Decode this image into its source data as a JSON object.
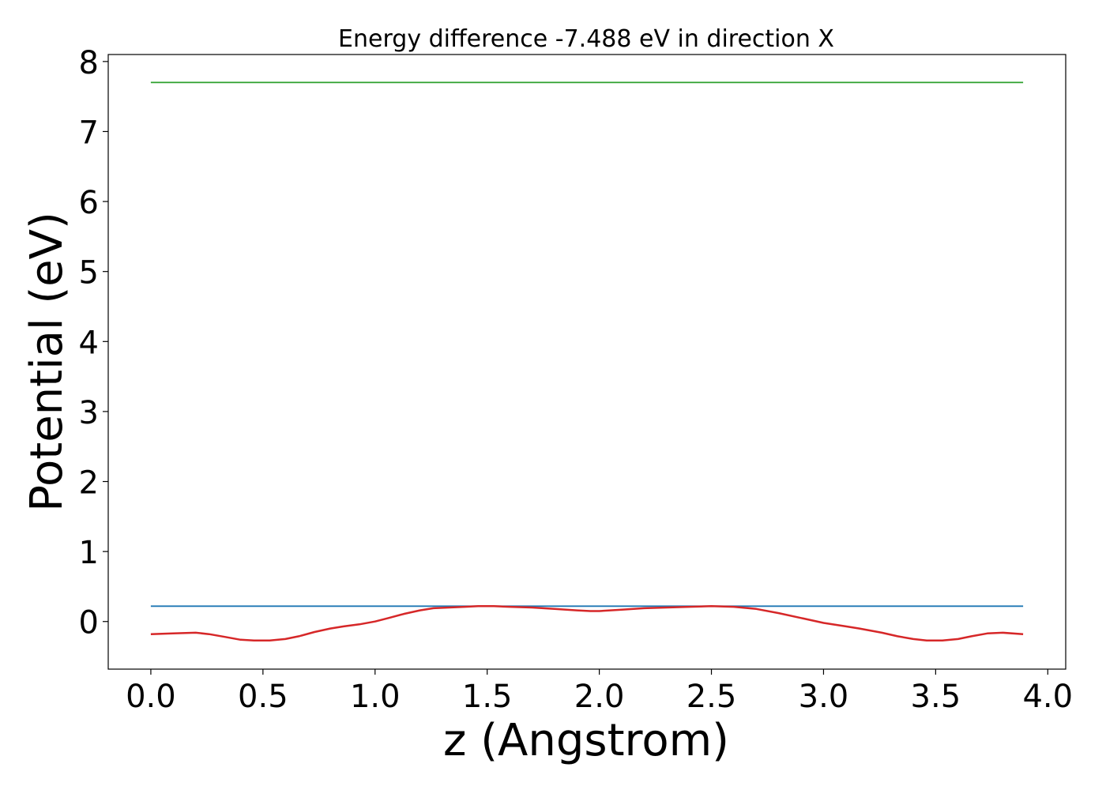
{
  "chart_data": {
    "type": "line",
    "title": "Energy difference -7.488 eV in direction X",
    "xlabel": "z (Angstrom)",
    "ylabel": "Potential (eV)",
    "xlim": [
      -0.19,
      4.08
    ],
    "ylim": [
      -0.68,
      8.1
    ],
    "xticks": [
      0.0,
      0.5,
      1.0,
      1.5,
      2.0,
      2.5,
      3.0,
      3.5,
      4.0
    ],
    "xtick_labels": [
      "0.0",
      "0.5",
      "1.0",
      "1.5",
      "2.0",
      "2.5",
      "3.0",
      "3.5",
      "4.0"
    ],
    "yticks": [
      0,
      1,
      2,
      3,
      4,
      5,
      6,
      7,
      8
    ],
    "ytick_labels": [
      "0",
      "1",
      "2",
      "3",
      "4",
      "5",
      "6",
      "7",
      "8"
    ],
    "grid": false,
    "legend": false,
    "series": [
      {
        "color": "#2ca02c",
        "x": [
          0.0,
          3.89
        ],
        "y": [
          7.7,
          7.7
        ]
      },
      {
        "color": "#1f77b4",
        "x": [
          0.0,
          3.89
        ],
        "y": [
          0.22,
          0.22
        ]
      },
      {
        "color": "#d62728",
        "x": [
          0.0,
          0.1,
          0.2,
          0.26,
          0.33,
          0.4,
          0.46,
          0.53,
          0.6,
          0.66,
          0.73,
          0.8,
          0.86,
          0.93,
          1.0,
          1.06,
          1.13,
          1.2,
          1.26,
          1.33,
          1.4,
          1.46,
          1.53,
          1.6,
          1.7,
          1.8,
          1.9,
          1.96,
          2.0,
          2.1,
          2.2,
          2.3,
          2.4,
          2.5,
          2.6,
          2.7,
          2.8,
          2.9,
          3.0,
          3.1,
          3.16,
          3.26,
          3.33,
          3.4,
          3.46,
          3.53,
          3.6,
          3.66,
          3.73,
          3.8,
          3.89
        ],
        "y": [
          -0.18,
          -0.17,
          -0.16,
          -0.18,
          -0.22,
          -0.26,
          -0.27,
          -0.27,
          -0.25,
          -0.21,
          -0.15,
          -0.1,
          -0.07,
          -0.04,
          0.0,
          0.05,
          0.11,
          0.16,
          0.19,
          0.2,
          0.21,
          0.22,
          0.22,
          0.21,
          0.2,
          0.18,
          0.16,
          0.15,
          0.15,
          0.17,
          0.19,
          0.2,
          0.21,
          0.22,
          0.21,
          0.18,
          0.12,
          0.05,
          -0.02,
          -0.07,
          -0.1,
          -0.16,
          -0.21,
          -0.25,
          -0.27,
          -0.27,
          -0.25,
          -0.21,
          -0.17,
          -0.16,
          -0.18
        ]
      }
    ]
  }
}
